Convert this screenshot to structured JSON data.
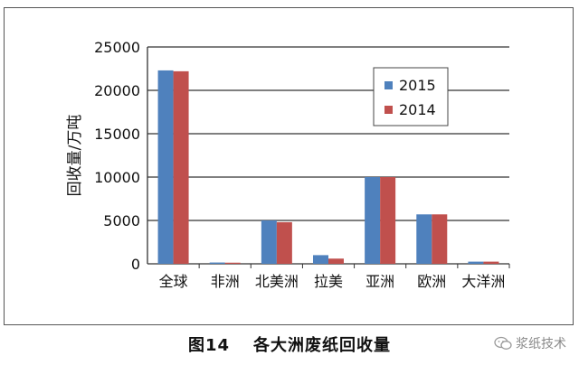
{
  "chart_data": {
    "type": "bar",
    "title": "",
    "xlabel": "",
    "ylabel": "回收量/万吨",
    "ylim": [
      0,
      25000
    ],
    "yticks": [
      0,
      5000,
      10000,
      15000,
      20000,
      25000
    ],
    "grid": true,
    "legend_position": "top-right",
    "categories": [
      "全球",
      "非洲",
      "北美洲",
      "拉美",
      "亚洲",
      "欧洲",
      "大洋洲"
    ],
    "series": [
      {
        "name": "2015",
        "color": "#4f81bd",
        "values": [
          22300,
          150,
          5000,
          1000,
          10000,
          5700,
          250
        ]
      },
      {
        "name": "2014",
        "color": "#c0504d",
        "values": [
          22200,
          130,
          4800,
          600,
          10000,
          5700,
          250
        ]
      }
    ]
  },
  "caption": {
    "figure_number": "图14",
    "title": "各大洲废纸回收量"
  },
  "watermark": {
    "text": "浆纸技术",
    "icon": "wechat-icon"
  }
}
